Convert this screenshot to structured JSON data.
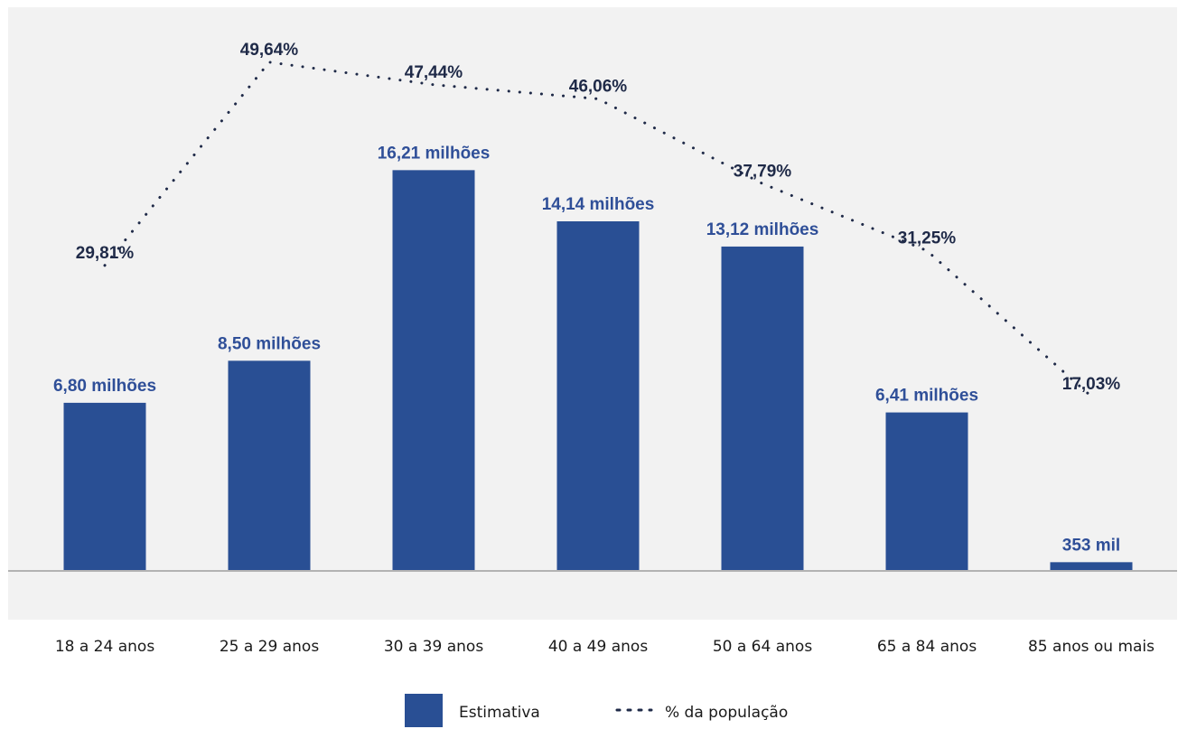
{
  "chart_data": {
    "type": "bar",
    "categories": [
      "18 a 24 anos",
      "25 a 29 anos",
      "30 a 39 anos",
      "40 a 49 anos",
      "50 a 64 anos",
      "65 a 84 anos",
      "85 anos ou mais"
    ],
    "series": [
      {
        "name": "Estimativa",
        "type": "bar",
        "values": [
          6.8,
          8.5,
          16.21,
          14.14,
          13.12,
          6.41,
          0.353
        ],
        "unit": "milhões",
        "labels": [
          "6,80 milhões",
          "8,50 milhões",
          "16,21 milhões",
          "14,14 milhões",
          "13,12 milhões",
          "6,41 milhões",
          "353 mil"
        ]
      },
      {
        "name": "% da população",
        "type": "line",
        "line_style": "dotted",
        "values": [
          29.81,
          49.64,
          47.44,
          46.06,
          37.79,
          31.25,
          17.03
        ],
        "labels": [
          "29,81%",
          "49,64%",
          "47,44%",
          "46,06%",
          "37,79%",
          "31,25%",
          "17,03%"
        ]
      }
    ],
    "title": "",
    "xlabel": "",
    "ylabel": "",
    "bar_ylim": [
      0,
      22.8
    ],
    "line_ylim": [
      0,
      55
    ],
    "grid": false,
    "legend": "bottom-center"
  },
  "colors": {
    "bar": "#294f94",
    "bar_label": "#2f4f98",
    "line": "#1f2a48",
    "line_label": "#1f2a48",
    "plot_bg": "#f2f2f2",
    "axis": "#b3b3b3"
  }
}
